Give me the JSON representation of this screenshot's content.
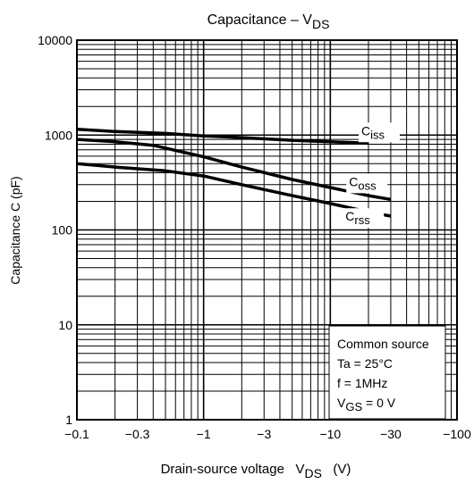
{
  "chart_data": {
    "type": "line",
    "title": {
      "main": "Capacitance – V",
      "sub": "DS"
    },
    "xlabel": {
      "main": "Drain-source voltage   V",
      "sub": "DS",
      "unit": "   (V)"
    },
    "ylabel": "Capacitance   C   (pF)",
    "x_scale": "log",
    "y_scale": "log",
    "xlim": [
      -0.1,
      -100
    ],
    "ylim": [
      1,
      10000
    ],
    "x_ticks": [
      {
        "value": -0.1,
        "label": "−0.1"
      },
      {
        "value": -0.3,
        "label": "−0.3"
      },
      {
        "value": -1,
        "label": "−1"
      },
      {
        "value": -3,
        "label": "−3"
      },
      {
        "value": -10,
        "label": "−10"
      },
      {
        "value": -30,
        "label": "−30"
      },
      {
        "value": -100,
        "label": "−100"
      }
    ],
    "y_ticks": [
      {
        "value": 1,
        "label": "1"
      },
      {
        "value": 10,
        "label": "10"
      },
      {
        "value": 100,
        "label": "100"
      },
      {
        "value": 1000,
        "label": "1000"
      },
      {
        "value": 10000,
        "label": "10000"
      }
    ],
    "grid": true,
    "series": [
      {
        "name": "C",
        "sub": "iss",
        "x": [
          -0.1,
          -0.2,
          -0.5,
          -1,
          -2,
          -5,
          -10,
          -20
        ],
        "y": [
          1150,
          1090,
          1040,
          980,
          940,
          880,
          850,
          820
        ]
      },
      {
        "name": "C",
        "sub": "oss",
        "x": [
          -0.1,
          -0.2,
          -0.4,
          -0.6,
          -1,
          -2,
          -5,
          -10,
          -20,
          -30
        ],
        "y": [
          900,
          850,
          780,
          690,
          590,
          460,
          340,
          280,
          230,
          210
        ]
      },
      {
        "name": "C",
        "sub": "rss",
        "x": [
          -0.1,
          -0.2,
          -0.5,
          -1,
          -2,
          -5,
          -10,
          -20,
          -30
        ],
        "y": [
          500,
          460,
          420,
          370,
          300,
          230,
          190,
          155,
          140
        ]
      }
    ],
    "annotation": {
      "lines": [
        {
          "main": "Common source",
          "sub": ""
        },
        {
          "main": "Ta = 25°C",
          "sub": ""
        },
        {
          "main": "f = 1MHz",
          "sub": ""
        },
        {
          "main": "V",
          "sub": "GS",
          "tail": " = 0 V"
        }
      ]
    }
  }
}
